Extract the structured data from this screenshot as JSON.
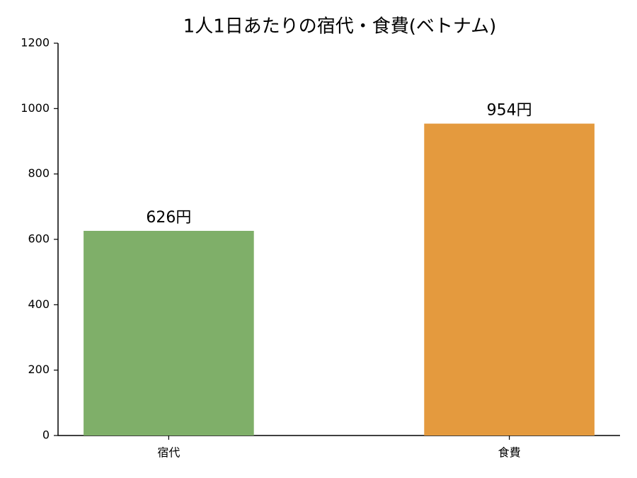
{
  "chart_data": {
    "type": "bar",
    "title": "1人1日あたりの宿代・食費(ベトナム)",
    "categories": [
      "宿代",
      "食費"
    ],
    "values": [
      626,
      954
    ],
    "value_labels": [
      "626円",
      "954円"
    ],
    "colors": [
      "#7faf69",
      "#e49a3e"
    ],
    "ylim": [
      0,
      1200
    ],
    "yticks": [
      0,
      200,
      400,
      600,
      800,
      1000,
      1200
    ],
    "grid": false
  }
}
